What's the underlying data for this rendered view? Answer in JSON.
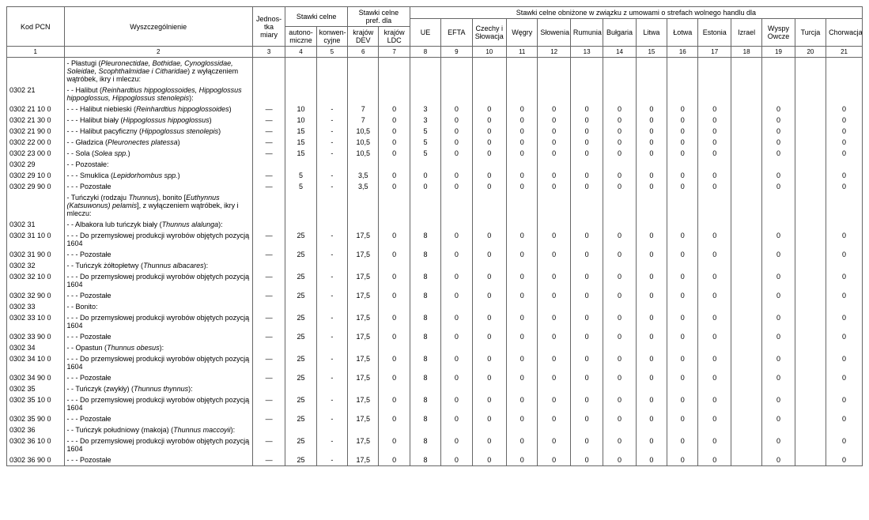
{
  "header": {
    "kod": "Kod PCN",
    "wysz": "Wyszczególnienie",
    "jedn": "Jednos-\ntka\nmiary",
    "stawki_celne": "Stawki celne",
    "stawki_pref": "Stawki celne\npref. dla",
    "stawki_obnizone": "Stawki celne obniżone w związku z umowami o strefach wolnego handlu dla",
    "autono": "autono-\nmiczne",
    "konwen": "konwen-\ncyjne",
    "dev": "krajów\nDEV",
    "ldc": "krajów\nLDC",
    "ue": "UE",
    "efta": "EFTA",
    "czechy": "Czechy i\nSłowacja",
    "wegry": "Węgry",
    "slowenia": "Słowenia",
    "rumunia": "Rumunia",
    "bulgaria": "Bułgaria",
    "litwa": "Litwa",
    "lotwa": "Łotwa",
    "estonia": "Estonia",
    "izrael": "Izrael",
    "wyspy": "Wyspy\nOwcze",
    "turcja": "Turcja",
    "chorwacja": "Chorwacja"
  },
  "colnums": [
    "1",
    "2",
    "3",
    "4",
    "5",
    "6",
    "7",
    "8",
    "9",
    "10",
    "11",
    "12",
    "13",
    "14",
    "15",
    "16",
    "17",
    "18",
    "19",
    "20",
    "21"
  ],
  "rows": [
    {
      "code": "",
      "desc": "- Płastugi (<em>Pleuronectidae, Bothidae, Cynoglossidae, Soleidae, Scophthalmidae i Citharidae</em>) z wyłączeniem wątróbek, ikry i mleczu:"
    },
    {
      "code": "0302 21",
      "desc": "- - Halibut (<em>Reinhardtius hippoglossoides, Hippoglossus hippoglossus, Hippoglossus stenolepis</em>):"
    },
    {
      "code": "0302 21 10 0",
      "desc": "- - - Halibut niebieski (<em>Reinhardtius hippoglossoides</em>)",
      "c3": "—",
      "c4": "10",
      "c5": "-",
      "c6": "7",
      "c7": "0",
      "c8": "3",
      "c9": "0",
      "c10": "0",
      "c11": "0",
      "c12": "0",
      "c13": "0",
      "c14": "0",
      "c15": "0",
      "c16": "0",
      "c17": "0",
      "c18": "",
      "c19": "0",
      "c20": "",
      "c21": "0"
    },
    {
      "code": "0302 21 30 0",
      "desc": "- - - Halibut biały (<em>Hippoglossus hippoglossus</em>)",
      "c3": "—",
      "c4": "10",
      "c5": "-",
      "c6": "7",
      "c7": "0",
      "c8": "3",
      "c9": "0",
      "c10": "0",
      "c11": "0",
      "c12": "0",
      "c13": "0",
      "c14": "0",
      "c15": "0",
      "c16": "0",
      "c17": "0",
      "c18": "",
      "c19": "0",
      "c20": "",
      "c21": "0"
    },
    {
      "code": "0302 21 90 0",
      "desc": "- - - Halibut pacyficzny (<em>Hippoglossus stenolepis</em>)",
      "c3": "—",
      "c4": "15",
      "c5": "-",
      "c6": "10,5",
      "c7": "0",
      "c8": "5",
      "c9": "0",
      "c10": "0",
      "c11": "0",
      "c12": "0",
      "c13": "0",
      "c14": "0",
      "c15": "0",
      "c16": "0",
      "c17": "0",
      "c18": "",
      "c19": "0",
      "c20": "",
      "c21": "0"
    },
    {
      "code": "0302 22 00 0",
      "desc": "- - Gładzica (<em>Pleuronectes platessa</em>)",
      "c3": "—",
      "c4": "15",
      "c5": "-",
      "c6": "10,5",
      "c7": "0",
      "c8": "5",
      "c9": "0",
      "c10": "0",
      "c11": "0",
      "c12": "0",
      "c13": "0",
      "c14": "0",
      "c15": "0",
      "c16": "0",
      "c17": "0",
      "c18": "",
      "c19": "0",
      "c20": "",
      "c21": "0"
    },
    {
      "code": "0302 23 00 0",
      "desc": "- - Sola (<em>Solea spp.</em>)",
      "c3": "—",
      "c4": "15",
      "c5": "-",
      "c6": "10,5",
      "c7": "0",
      "c8": "5",
      "c9": "0",
      "c10": "0",
      "c11": "0",
      "c12": "0",
      "c13": "0",
      "c14": "0",
      "c15": "0",
      "c16": "0",
      "c17": "0",
      "c18": "",
      "c19": "0",
      "c20": "",
      "c21": "0"
    },
    {
      "code": "0302 29",
      "desc": "- - Pozostałe:"
    },
    {
      "code": "0302 29 10 0",
      "desc": "- - - Smuklica (<em>Lepidorhombus spp.</em>)",
      "c3": "—",
      "c4": "5",
      "c5": "-",
      "c6": "3,5",
      "c7": "0",
      "c8": "0",
      "c9": "0",
      "c10": "0",
      "c11": "0",
      "c12": "0",
      "c13": "0",
      "c14": "0",
      "c15": "0",
      "c16": "0",
      "c17": "0",
      "c18": "",
      "c19": "0",
      "c20": "",
      "c21": "0"
    },
    {
      "code": "0302 29 90 0",
      "desc": "- - - Pozostałe",
      "c3": "—",
      "c4": "5",
      "c5": "-",
      "c6": "3,5",
      "c7": "0",
      "c8": "0",
      "c9": "0",
      "c10": "0",
      "c11": "0",
      "c12": "0",
      "c13": "0",
      "c14": "0",
      "c15": "0",
      "c16": "0",
      "c17": "0",
      "c18": "",
      "c19": "0",
      "c20": "",
      "c21": "0"
    },
    {
      "code": "",
      "desc": "- Tuńczyki (rodzaju <em>Thunnus</em>), bonito [<em>Euthynnus (Katsuwonus) pelamis</em>], z wyłączeniem wątróbek, ikry i mleczu:"
    },
    {
      "code": "0302 31",
      "desc": "- - Albakora lub tuńczyk biały (<em>Thunnus alalunga</em>):"
    },
    {
      "code": "0302 31 10 0",
      "desc": "- - - Do przemysłowej produkcji wyrobów objętych pozycją 1604",
      "c3": "—",
      "c4": "25",
      "c5": "-",
      "c6": "17,5",
      "c7": "0",
      "c8": "8",
      "c9": "0",
      "c10": "0",
      "c11": "0",
      "c12": "0",
      "c13": "0",
      "c14": "0",
      "c15": "0",
      "c16": "0",
      "c17": "0",
      "c18": "",
      "c19": "0",
      "c20": "",
      "c21": "0"
    },
    {
      "code": "0302 31 90 0",
      "desc": "- - - Pozostałe",
      "c3": "—",
      "c4": "25",
      "c5": "-",
      "c6": "17,5",
      "c7": "0",
      "c8": "8",
      "c9": "0",
      "c10": "0",
      "c11": "0",
      "c12": "0",
      "c13": "0",
      "c14": "0",
      "c15": "0",
      "c16": "0",
      "c17": "0",
      "c18": "",
      "c19": "0",
      "c20": "",
      "c21": "0"
    },
    {
      "code": "0302 32",
      "desc": "- - Tuńczyk żółtopłetwy (<em>Thunnus albacares</em>):"
    },
    {
      "code": "0302 32 10 0",
      "desc": "- - - Do przemysłowej produkcji wyrobów objętych pozycją 1604",
      "c3": "—",
      "c4": "25",
      "c5": "-",
      "c6": "17,5",
      "c7": "0",
      "c8": "8",
      "c9": "0",
      "c10": "0",
      "c11": "0",
      "c12": "0",
      "c13": "0",
      "c14": "0",
      "c15": "0",
      "c16": "0",
      "c17": "0",
      "c18": "",
      "c19": "0",
      "c20": "",
      "c21": "0"
    },
    {
      "code": "0302 32 90 0",
      "desc": "- - - Pozostałe",
      "c3": "—",
      "c4": "25",
      "c5": "-",
      "c6": "17,5",
      "c7": "0",
      "c8": "8",
      "c9": "0",
      "c10": "0",
      "c11": "0",
      "c12": "0",
      "c13": "0",
      "c14": "0",
      "c15": "0",
      "c16": "0",
      "c17": "0",
      "c18": "",
      "c19": "0",
      "c20": "",
      "c21": "0"
    },
    {
      "code": "0302 33",
      "desc": "- - Bonito:"
    },
    {
      "code": "0302 33 10 0",
      "desc": "- - - Do przemysłowej produkcji wyrobów objętych pozycją 1604",
      "c3": "—",
      "c4": "25",
      "c5": "-",
      "c6": "17,5",
      "c7": "0",
      "c8": "8",
      "c9": "0",
      "c10": "0",
      "c11": "0",
      "c12": "0",
      "c13": "0",
      "c14": "0",
      "c15": "0",
      "c16": "0",
      "c17": "0",
      "c18": "",
      "c19": "0",
      "c20": "",
      "c21": "0"
    },
    {
      "code": "0302 33 90 0",
      "desc": "- - - Pozostałe",
      "c3": "—",
      "c4": "25",
      "c5": "-",
      "c6": "17,5",
      "c7": "0",
      "c8": "8",
      "c9": "0",
      "c10": "0",
      "c11": "0",
      "c12": "0",
      "c13": "0",
      "c14": "0",
      "c15": "0",
      "c16": "0",
      "c17": "0",
      "c18": "",
      "c19": "0",
      "c20": "",
      "c21": "0"
    },
    {
      "code": "0302 34",
      "desc": "- - Opastun (<em>Thunnus obesus</em>):"
    },
    {
      "code": "0302 34 10 0",
      "desc": "- - - Do przemysłowej produkcji wyrobów objętych pozycją 1604",
      "c3": "—",
      "c4": "25",
      "c5": "-",
      "c6": "17,5",
      "c7": "0",
      "c8": "8",
      "c9": "0",
      "c10": "0",
      "c11": "0",
      "c12": "0",
      "c13": "0",
      "c14": "0",
      "c15": "0",
      "c16": "0",
      "c17": "0",
      "c18": "",
      "c19": "0",
      "c20": "",
      "c21": "0"
    },
    {
      "code": "0302 34 90 0",
      "desc": "- - - Pozostałe",
      "c3": "—",
      "c4": "25",
      "c5": "-",
      "c6": "17,5",
      "c7": "0",
      "c8": "8",
      "c9": "0",
      "c10": "0",
      "c11": "0",
      "c12": "0",
      "c13": "0",
      "c14": "0",
      "c15": "0",
      "c16": "0",
      "c17": "0",
      "c18": "",
      "c19": "0",
      "c20": "",
      "c21": "0"
    },
    {
      "code": "0302 35",
      "desc": "- - Tuńczyk (zwykły) (<em>Thunnus thynnus</em>):"
    },
    {
      "code": "0302 35 10 0",
      "desc": "- - - Do przemysłowej produkcji wyrobów objętych pozycją 1604",
      "c3": "—",
      "c4": "25",
      "c5": "-",
      "c6": "17,5",
      "c7": "0",
      "c8": "8",
      "c9": "0",
      "c10": "0",
      "c11": "0",
      "c12": "0",
      "c13": "0",
      "c14": "0",
      "c15": "0",
      "c16": "0",
      "c17": "0",
      "c18": "",
      "c19": "0",
      "c20": "",
      "c21": "0"
    },
    {
      "code": "0302 35 90 0",
      "desc": "- - - Pozostałe",
      "c3": "—",
      "c4": "25",
      "c5": "-",
      "c6": "17,5",
      "c7": "0",
      "c8": "8",
      "c9": "0",
      "c10": "0",
      "c11": "0",
      "c12": "0",
      "c13": "0",
      "c14": "0",
      "c15": "0",
      "c16": "0",
      "c17": "0",
      "c18": "",
      "c19": "0",
      "c20": "",
      "c21": "0"
    },
    {
      "code": "0302 36",
      "desc": "- - Tuńczyk południowy (makoja) (<em>Thunnus maccoyii</em>):"
    },
    {
      "code": "0302 36 10 0",
      "desc": "- - - Do przemysłowej produkcji wyrobów objętych pozycją 1604",
      "c3": "—",
      "c4": "25",
      "c5": "-",
      "c6": "17,5",
      "c7": "0",
      "c8": "8",
      "c9": "0",
      "c10": "0",
      "c11": "0",
      "c12": "0",
      "c13": "0",
      "c14": "0",
      "c15": "0",
      "c16": "0",
      "c17": "0",
      "c18": "",
      "c19": "0",
      "c20": "",
      "c21": "0"
    },
    {
      "code": "0302 36 90 0",
      "desc": "- - - Pozostałe",
      "c3": "—",
      "c4": "25",
      "c5": "-",
      "c6": "17,5",
      "c7": "0",
      "c8": "8",
      "c9": "0",
      "c10": "0",
      "c11": "0",
      "c12": "0",
      "c13": "0",
      "c14": "0",
      "c15": "0",
      "c16": "0",
      "c17": "0",
      "c18": "",
      "c19": "0",
      "c20": "",
      "c21": "0"
    }
  ],
  "widths": {
    "c1": 70,
    "c2": 230,
    "c3": 40,
    "c4": 38,
    "c5": 38,
    "c6": 38,
    "c7": 38,
    "c8": 38,
    "c9": 38,
    "c10": 42,
    "c11": 38,
    "c12": 40,
    "c13": 40,
    "c14": 40,
    "c15": 38,
    "c16": 38,
    "c17": 40,
    "c18": 38,
    "c19": 40,
    "c20": 38,
    "c21": 44
  }
}
